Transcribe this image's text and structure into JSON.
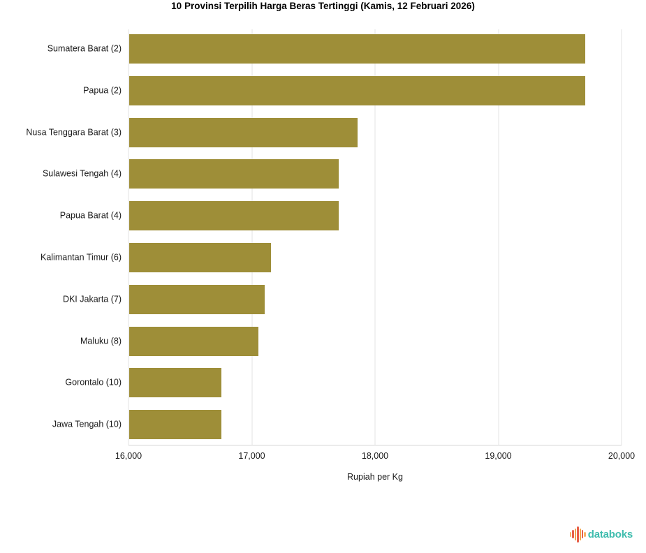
{
  "chart_data": {
    "type": "bar",
    "orientation": "horizontal",
    "title": "10 Provinsi Terpilih Harga Beras Tertinggi (Kamis, 12 Februari 2026)",
    "categories": [
      "Sumatera Barat (2)",
      "Papua (2)",
      "Nusa Tenggara Barat (3)",
      "Sulawesi Tengah (4)",
      "Papua Barat (4)",
      "Kalimantan Timur (6)",
      "DKI Jakarta (7)",
      "Maluku (8)",
      "Gorontalo (10)",
      "Jawa Tengah (10)"
    ],
    "values": [
      19700,
      19700,
      17850,
      17700,
      17700,
      17150,
      17100,
      17050,
      16750,
      16750
    ],
    "xlabel": "Rupiah per Kg",
    "ylabel": "",
    "xlim": [
      16000,
      20000
    ],
    "xticks": [
      16000,
      17000,
      18000,
      19000,
      20000
    ],
    "xtick_labels": [
      "16,000",
      "17,000",
      "18,000",
      "19,000",
      "20,000"
    ],
    "bar_color": "#9e8e38",
    "grid": true,
    "gridline_color": "#e3e3e3",
    "legend": "none"
  },
  "branding": {
    "wordmark": "databoks",
    "wordmark_color": "#3fbdae",
    "icon_bar_colors": [
      "#f7b267",
      "#e8604a",
      "#f2a64e",
      "#e8604a",
      "#f2a64e",
      "#e8604a",
      "#f7b267"
    ],
    "icon_bar_heights": [
      7,
      12,
      17,
      23,
      17,
      12,
      7
    ]
  }
}
